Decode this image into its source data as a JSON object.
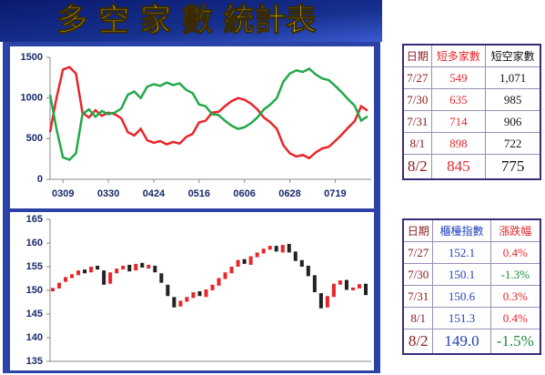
{
  "title": "多 空 家 數 統計表",
  "chart_data": [
    {
      "type": "line",
      "categories": [
        null,
        null,
        "0309",
        null,
        null,
        null,
        null,
        null,
        null,
        "0330",
        null,
        null,
        null,
        null,
        null,
        null,
        "0424",
        null,
        null,
        null,
        null,
        null,
        null,
        "0516",
        null,
        null,
        null,
        null,
        null,
        null,
        "0606",
        null,
        null,
        null,
        null,
        null,
        null,
        "0628",
        null,
        null,
        null,
        null,
        null,
        null,
        "0719",
        null,
        null,
        null,
        null,
        null
      ],
      "series": [
        {
          "color": "#e8262a",
          "values": [
            580,
            1000,
            1350,
            1380,
            1300,
            820,
            760,
            850,
            780,
            820,
            800,
            750,
            580,
            540,
            620,
            480,
            450,
            470,
            430,
            460,
            440,
            520,
            560,
            700,
            720,
            820,
            830,
            900,
            960,
            1000,
            980,
            930,
            860,
            760,
            700,
            620,
            420,
            320,
            280,
            300,
            260,
            330,
            380,
            400,
            470,
            549,
            635,
            714,
            898,
            845
          ]
        },
        {
          "color": "#22a84a",
          "values": [
            1040,
            620,
            270,
            240,
            320,
            800,
            860,
            770,
            840,
            800,
            820,
            870,
            1040,
            1080,
            1000,
            1140,
            1170,
            1150,
            1190,
            1160,
            1180,
            1100,
            1060,
            920,
            900,
            800,
            790,
            720,
            660,
            620,
            640,
            690,
            760,
            860,
            920,
            1000,
            1200,
            1300,
            1340,
            1320,
            1360,
            1290,
            1240,
            1220,
            1150,
            1071,
            985,
            906,
            722,
            775
          ]
        }
      ],
      "ylim": [
        0,
        1500
      ],
      "yticks": [
        0,
        500,
        1000,
        1500
      ]
    },
    {
      "type": "candlestick",
      "open": [
        149.8,
        150.4,
        151.8,
        152.6,
        153.2,
        154.4,
        153.8,
        155.2,
        154.2,
        151.4,
        153.6,
        154.4,
        155.4,
        154.2,
        155.8,
        154.6,
        155.2,
        153.6,
        151.2,
        148.6,
        146.6,
        147.6,
        148.4,
        149.8,
        148.6,
        150.0,
        151.0,
        152.4,
        153.6,
        155.0,
        156.6,
        155.4,
        157.0,
        157.8,
        158.6,
        159.4,
        158.0,
        159.8,
        158.2,
        156.4,
        155.2,
        153.2,
        149.4,
        146.4,
        148.6,
        151.2,
        152.2,
        150.0,
        150.4,
        151.4
      ],
      "close": [
        150.5,
        151.6,
        152.8,
        153.4,
        154.2,
        153.6,
        155.0,
        154.4,
        151.2,
        153.8,
        154.6,
        155.2,
        154.0,
        155.6,
        154.8,
        155.4,
        153.8,
        151.6,
        148.8,
        146.4,
        147.8,
        148.6,
        149.6,
        148.8,
        150.2,
        151.2,
        152.6,
        153.8,
        155.0,
        156.4,
        155.6,
        157.2,
        158.0,
        158.8,
        159.4,
        158.2,
        159.6,
        158.0,
        156.2,
        155.0,
        153.0,
        149.6,
        146.2,
        148.8,
        151.4,
        152.1,
        150.1,
        150.6,
        151.3,
        149.0
      ],
      "up_color": "#e8262a",
      "down_color": "#222222",
      "ylim": [
        135,
        165
      ],
      "yticks": [
        135,
        140,
        145,
        150,
        155,
        160,
        165
      ]
    }
  ],
  "tables": [
    {
      "header": [
        "日期",
        "短多家數",
        "短空家數"
      ],
      "rows": [
        [
          "7/27",
          "549",
          "1,071"
        ],
        [
          "7/30",
          "635",
          "985"
        ],
        [
          "7/31",
          "714",
          "906"
        ],
        [
          "8/1",
          "898",
          "722"
        ],
        [
          "8/2",
          "845",
          "775"
        ]
      ]
    },
    {
      "header": [
        "日期",
        "櫃檯指數",
        "漲跌幅"
      ],
      "rows": [
        [
          "7/27",
          "152.1",
          "0.4%"
        ],
        [
          "7/30",
          "150.1",
          "-1.3%"
        ],
        [
          "7/31",
          "150.6",
          "0.3%"
        ],
        [
          "8/1",
          "151.3",
          "0.4%"
        ],
        [
          "8/2",
          "149.0",
          "-1.5%"
        ]
      ]
    }
  ]
}
